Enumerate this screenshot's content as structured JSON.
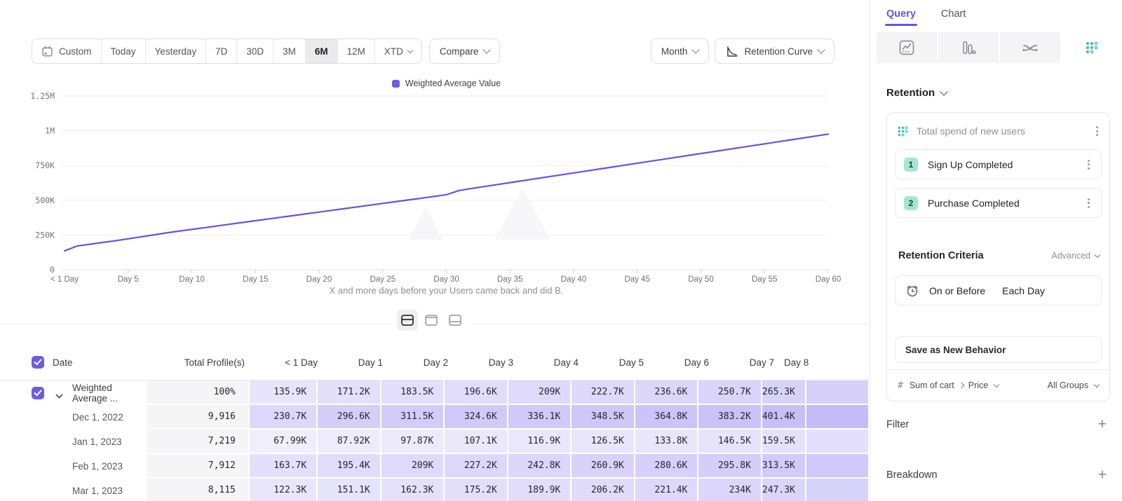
{
  "toolbar": {
    "date_ranges": [
      "Custom",
      "Today",
      "Yesterday",
      "7D",
      "30D",
      "3M",
      "6M",
      "12M",
      "XTD"
    ],
    "selected_range": "6M",
    "compare_label": "Compare",
    "granularity_label": "Month",
    "chart_type_label": "Retention Curve"
  },
  "chart": {
    "legend": "Weighted Average Value",
    "caption": "X and more days before your Users came back and did B.",
    "accent": "#6e5be8",
    "line_color": "#6354e4"
  },
  "chart_data": {
    "type": "line",
    "title": "",
    "xlabel": "X and more days before your Users came back and did B.",
    "ylabel": "",
    "ylim": [
      0,
      1250000
    ],
    "x_ticks": [
      "< 1 Day",
      "Day 5",
      "Day 10",
      "Day 15",
      "Day 20",
      "Day 25",
      "Day 30",
      "Day 35",
      "Day 40",
      "Day 45",
      "Day 50",
      "Day 55",
      "Day 60"
    ],
    "y_ticks": [
      "0",
      "250K",
      "500K",
      "750K",
      "1M",
      "1.25M"
    ],
    "grid": "horizontal",
    "legend_position": "top-center",
    "series": [
      {
        "name": "Weighted Average Value",
        "x_days_start": 0,
        "values_thousands": [
          135.9,
          171.2,
          183.5,
          196.6,
          209,
          222.7,
          236.6,
          250.7,
          265.3,
          278,
          290.4,
          302.9,
          315.3,
          327.8,
          340.2,
          352.7,
          365.1,
          377.6,
          390,
          402.5,
          414.9,
          427.4,
          439.8,
          452.3,
          464.7,
          477.2,
          489.6,
          502.1,
          514.5,
          527,
          540,
          570,
          585,
          598.9,
          612.9,
          626.8,
          640.8,
          654.7,
          668.7,
          682.6,
          696.6,
          710.5,
          724.5,
          738.4,
          752.4,
          766.3,
          780.3,
          794.2,
          808.2,
          822.1,
          836.1,
          850,
          863.9,
          877.9,
          891.8,
          905.8,
          919.7,
          933.7,
          947.6,
          961.6,
          975.5
        ]
      }
    ]
  },
  "view_toggle": {
    "options": [
      "split-view",
      "chart-only",
      "table-only"
    ],
    "selected": "split-view"
  },
  "table": {
    "columns": [
      "Date",
      "Total Profile(s)",
      "< 1 Day",
      "Day 1",
      "Day 2",
      "Day 3",
      "Day 4",
      "Day 5",
      "Day 6",
      "Day 7",
      "Day 8"
    ],
    "heat_color": "#7c68ee",
    "rows": [
      {
        "label": "Weighted Average ...",
        "checked": true,
        "expandable": true,
        "profiles": "100%",
        "values": [
          "135.9K",
          "171.2K",
          "183.5K",
          "196.6K",
          "209K",
          "222.7K",
          "236.6K",
          "250.7K",
          "265.3K"
        ]
      },
      {
        "label": "Dec 1, 2022",
        "profiles": "9,916",
        "values": [
          "230.7K",
          "296.6K",
          "311.5K",
          "324.6K",
          "336.1K",
          "348.5K",
          "364.8K",
          "383.2K",
          "401.4K"
        ]
      },
      {
        "label": "Jan 1, 2023",
        "profiles": "7,219",
        "values": [
          "67.99K",
          "87.92K",
          "97.87K",
          "107.1K",
          "116.9K",
          "126.5K",
          "133.8K",
          "146.5K",
          "159.5K"
        ]
      },
      {
        "label": "Feb 1, 2023",
        "profiles": "7,912",
        "values": [
          "163.7K",
          "195.4K",
          "209K",
          "227.2K",
          "242.8K",
          "260.9K",
          "280.6K",
          "295.8K",
          "313.5K"
        ]
      },
      {
        "label": "Mar 1, 2023",
        "profiles": "8,115",
        "values": [
          "122.3K",
          "151.1K",
          "162.3K",
          "175.2K",
          "189.9K",
          "206.2K",
          "221.4K",
          "234K",
          "247.3K"
        ]
      }
    ]
  },
  "sidebar": {
    "tabs": [
      {
        "label": "Query",
        "active": true
      },
      {
        "label": "Chart",
        "active": false
      }
    ],
    "view_tabs": [
      {
        "name": "insights",
        "selected": false
      },
      {
        "name": "funnels",
        "selected": false
      },
      {
        "name": "flows",
        "selected": false
      },
      {
        "name": "retention",
        "selected": true
      }
    ],
    "teal": "#3fbfa9",
    "section_label": "Retention",
    "behavior": {
      "title": "Total spend of new users",
      "steps": [
        {
          "num": "1",
          "label": "Sign Up Completed"
        },
        {
          "num": "2",
          "label": "Purchase Completed"
        }
      ]
    },
    "criteria": {
      "label": "Retention Criteria",
      "mode": "Advanced",
      "condition": "On or Before",
      "window": "Each Day"
    },
    "save_button": "Save as New Behavior",
    "measure": {
      "prefix": "#",
      "event_property": "Sum of cart",
      "property": "Price",
      "groups": "All Groups"
    },
    "filter_label": "Filter",
    "breakdown_label": "Breakdown"
  }
}
